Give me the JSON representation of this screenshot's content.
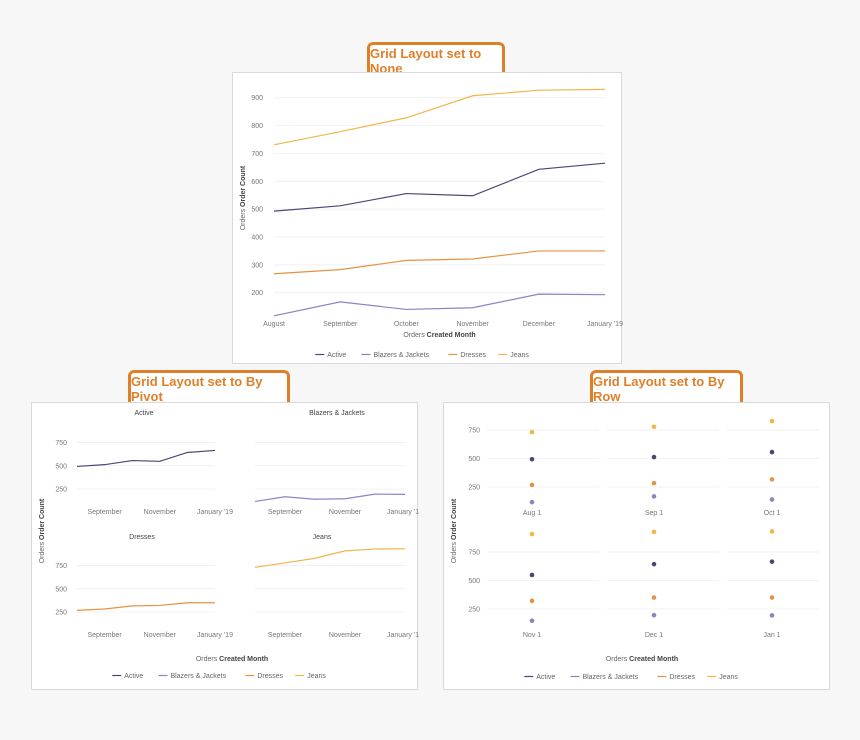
{
  "badges": {
    "none": "Grid Layout set to None",
    "pivot": "Grid Layout set to By Pivot",
    "row": "Grid Layout set to By Row"
  },
  "colors": {
    "Active": "#4a4778",
    "Blazers & Jackets": "#8f82c3",
    "Dresses": "#e49343",
    "Jeans": "#f1b64a"
  },
  "chart_data": [
    {
      "type": "line",
      "categories": [
        "August",
        "September",
        "October",
        "November",
        "December",
        "January '19"
      ],
      "series": [
        {
          "name": "Active",
          "values": [
            493,
            512,
            556,
            548,
            643,
            665
          ]
        },
        {
          "name": "Blazers & Jackets",
          "values": [
            117,
            167,
            140,
            146,
            195,
            193
          ]
        },
        {
          "name": "Dresses",
          "values": [
            268,
            283,
            316,
            321,
            350,
            350
          ]
        },
        {
          "name": "Jeans",
          "values": [
            731,
            778,
            828,
            907,
            927,
            930
          ]
        }
      ],
      "xlabel_prefix": "Orders",
      "xlabel_bold": "Created Month",
      "ylabel_prefix": "Orders",
      "ylabel_bold": "Order Count",
      "yticks": [
        200,
        300,
        400,
        500,
        600,
        700,
        800,
        900
      ],
      "ylim": [
        120,
        960
      ],
      "legend": [
        "Active",
        "Blazers & Jackets",
        "Dresses",
        "Jeans"
      ],
      "legend_position": "bottom",
      "grid": true
    },
    {
      "type": "line",
      "layout": "small multiples by pivot",
      "x": [
        "August",
        "September",
        "October",
        "November",
        "December",
        "January '19"
      ],
      "xticks": [
        "September",
        "November",
        "January '19"
      ],
      "yticks": [
        250,
        500,
        750
      ],
      "ylim": [
        100,
        820
      ],
      "series": [
        {
          "name": "Active",
          "values": [
            493,
            512,
            556,
            548,
            643,
            665
          ]
        },
        {
          "name": "Blazers & Jackets",
          "values": [
            117,
            167,
            140,
            146,
            195,
            193
          ]
        },
        {
          "name": "Dresses",
          "values": [
            268,
            283,
            316,
            321,
            350,
            350
          ]
        },
        {
          "name": "Jeans",
          "values": [
            731,
            778,
            828,
            907,
            927,
            930
          ]
        }
      ],
      "xlabel_prefix": "Orders",
      "xlabel_bold": "Created Month",
      "ylabel_prefix": "Orders",
      "ylabel_bold": "Order Count",
      "legend": [
        "Active",
        "Blazers & Jackets",
        "Dresses",
        "Jeans"
      ],
      "legend_position": "bottom",
      "grid": true
    },
    {
      "type": "scatter",
      "layout": "small multiples by row",
      "panels": [
        "Aug 1",
        "Sep 1",
        "Oct 1",
        "Nov 1",
        "Dec 1",
        "Jan 1"
      ],
      "yticks": [
        250,
        500,
        750
      ],
      "ylim": [
        100,
        820
      ],
      "series": [
        {
          "name": "Active",
          "values": [
            493,
            512,
            556,
            548,
            643,
            665
          ]
        },
        {
          "name": "Blazers & Jackets",
          "values": [
            117,
            167,
            140,
            146,
            195,
            193
          ]
        },
        {
          "name": "Dresses",
          "values": [
            268,
            283,
            316,
            321,
            350,
            350
          ]
        },
        {
          "name": "Jeans",
          "values": [
            731,
            778,
            828,
            907,
            927,
            930
          ]
        }
      ],
      "xlabel_prefix": "Orders",
      "xlabel_bold": "Created Month",
      "ylabel_prefix": "Orders",
      "ylabel_bold": "Order Count",
      "legend": [
        "Active",
        "Blazers & Jackets",
        "Dresses",
        "Jeans"
      ],
      "legend_position": "bottom",
      "grid": true
    }
  ]
}
